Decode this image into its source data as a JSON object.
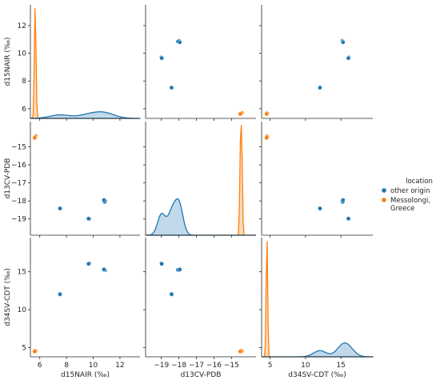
{
  "chart_data": {
    "type": "pairplot",
    "variables": [
      "d15NAIR (‰)",
      "d13CV-PDB",
      "d34SV-CDT (‰)"
    ],
    "axis_ranges": {
      "d15NAIR (‰)": [
        5.3,
        13.5
      ],
      "d13CV-PDB": [
        -19.9,
        -13.6
      ],
      "d34SV-CDT (‰)": [
        3.8,
        19.5
      ]
    },
    "ticks": {
      "d15NAIR (‰)": [
        6,
        8,
        10,
        12
      ],
      "d13CV-PDB": [
        -19,
        -18,
        -17,
        -16,
        -15
      ],
      "d34SV-CDT (‰)": [
        5,
        10,
        15
      ]
    },
    "tick_labels": {
      "d15NAIR (‰)": [
        "6",
        "8",
        "10",
        "12"
      ],
      "d13CV-PDB": [
        "−19",
        "−18",
        "−17",
        "−16",
        "−15"
      ],
      "d34SV-CDT (‰)": [
        "5",
        "10",
        "15"
      ]
    },
    "legend": {
      "title": "location",
      "placement": "right",
      "entries": [
        {
          "label_lines": [
            "other origin"
          ],
          "color": "#1f77b4"
        },
        {
          "label_lines": [
            "Messolongi,",
            "Greece"
          ],
          "color": "#ff7f0e"
        }
      ]
    },
    "series": [
      {
        "name": "other origin",
        "color": "#1f77b4",
        "points": [
          {
            "d15NAIR (‰)": 9.7,
            "d13CV-PDB": -19.0,
            "d34SV-CDT (‰)": 16.1
          },
          {
            "d15NAIR (‰)": 9.65,
            "d13CV-PDB": -18.98,
            "d34SV-CDT (‰)": 16.05
          },
          {
            "d15NAIR (‰)": 10.9,
            "d13CV-PDB": -18.0,
            "d34SV-CDT (‰)": 15.2
          },
          {
            "d15NAIR (‰)": 10.85,
            "d13CV-PDB": -18.05,
            "d34SV-CDT (‰)": 15.25
          },
          {
            "d15NAIR (‰)": 10.8,
            "d13CV-PDB": -17.95,
            "d34SV-CDT (‰)": 15.3
          },
          {
            "d15NAIR (‰)": 7.5,
            "d13CV-PDB": -18.4,
            "d34SV-CDT (‰)": 12.0
          },
          {
            "d15NAIR (‰)": 7.52,
            "d13CV-PDB": -18.42,
            "d34SV-CDT (‰)": 12.05
          }
        ],
        "kde_peak": {
          "d15NAIR (‰)": 0.06,
          "d13CV-PDB": 0.33,
          "d34SV-CDT (‰)": 0.12
        }
      },
      {
        "name": "Messolongi, Greece",
        "color": "#ff7f0e",
        "points": [
          {
            "d15NAIR (‰)": 5.7,
            "d13CV-PDB": -14.4,
            "d34SV-CDT (‰)": 4.55
          },
          {
            "d15NAIR (‰)": 5.65,
            "d13CV-PDB": -14.45,
            "d34SV-CDT (‰)": 4.6
          },
          {
            "d15NAIR (‰)": 5.62,
            "d13CV-PDB": -14.5,
            "d34SV-CDT (‰)": 4.5
          }
        ],
        "kde_peak": {
          "d15NAIR (‰)": 1.0,
          "d13CV-PDB": 1.0,
          "d34SV-CDT (‰)": 1.0
        }
      }
    ],
    "grid": false
  }
}
